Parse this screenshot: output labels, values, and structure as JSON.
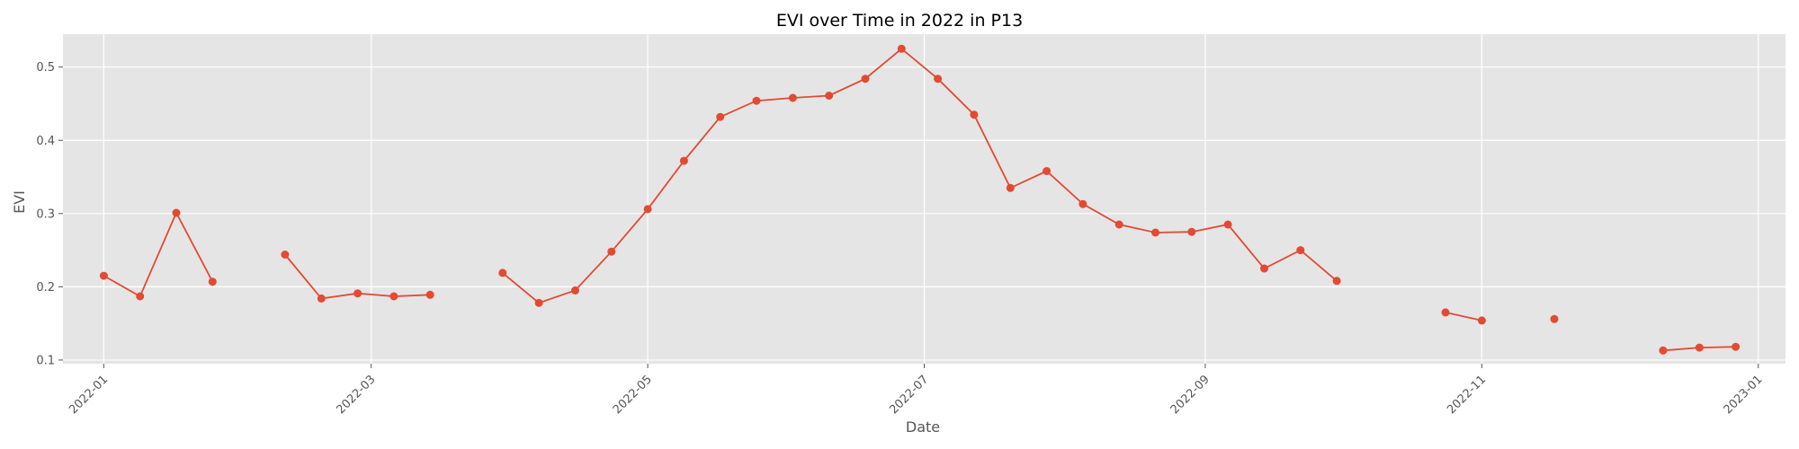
{
  "chart_data": {
    "type": "line",
    "title": "EVI over Time in 2022 in P13",
    "xlabel": "Date",
    "ylabel": "EVI",
    "x_ticks": [
      "2022-01",
      "2022-03",
      "2022-05",
      "2022-07",
      "2022-09",
      "2022-11",
      "2023-01"
    ],
    "x_tick_dates": [
      "2022-01-01",
      "2022-03-01",
      "2022-05-01",
      "2022-07-01",
      "2022-09-01",
      "2022-11-01",
      "2023-01-01"
    ],
    "y_ticks": [
      0.1,
      0.2,
      0.3,
      0.4,
      0.5
    ],
    "xlim": [
      "2021-12-23",
      "2023-01-07"
    ],
    "ylim": [
      0.095,
      0.545
    ],
    "grid": true,
    "color": "#E24A33",
    "background": "#E5E5E5",
    "segments": [
      [
        [
          "2022-01-01",
          0.215
        ],
        [
          "2022-01-09",
          0.187
        ],
        [
          "2022-01-17",
          0.301
        ],
        [
          "2022-01-25",
          0.207
        ]
      ],
      [
        [
          "2022-02-10",
          0.244
        ],
        [
          "2022-02-18",
          0.184
        ],
        [
          "2022-02-26",
          0.191
        ],
        [
          "2022-03-06",
          0.187
        ],
        [
          "2022-03-14",
          0.189
        ]
      ],
      [
        [
          "2022-03-30",
          0.219
        ],
        [
          "2022-04-07",
          0.178
        ],
        [
          "2022-04-15",
          0.195
        ],
        [
          "2022-04-23",
          0.248
        ],
        [
          "2022-05-01",
          0.306
        ],
        [
          "2022-05-09",
          0.372
        ],
        [
          "2022-05-17",
          0.432
        ],
        [
          "2022-05-25",
          0.454
        ],
        [
          "2022-06-02",
          0.458
        ],
        [
          "2022-06-10",
          0.461
        ],
        [
          "2022-06-18",
          0.484
        ],
        [
          "2022-06-26",
          0.525
        ],
        [
          "2022-07-04",
          0.484
        ],
        [
          "2022-07-12",
          0.435
        ],
        [
          "2022-07-20",
          0.335
        ],
        [
          "2022-07-28",
          0.358
        ],
        [
          "2022-08-05",
          0.313
        ],
        [
          "2022-08-13",
          0.285
        ],
        [
          "2022-08-21",
          0.274
        ],
        [
          "2022-08-29",
          0.275
        ],
        [
          "2022-09-06",
          0.285
        ],
        [
          "2022-09-14",
          0.225
        ],
        [
          "2022-09-22",
          0.25
        ],
        [
          "2022-09-30",
          0.208
        ]
      ],
      [
        [
          "2022-10-24",
          0.165
        ],
        [
          "2022-11-01",
          0.154
        ]
      ],
      [
        [
          "2022-11-17",
          0.156
        ]
      ],
      [
        [
          "2022-12-11",
          0.113
        ],
        [
          "2022-12-19",
          0.117
        ],
        [
          "2022-12-27",
          0.118
        ]
      ]
    ]
  }
}
